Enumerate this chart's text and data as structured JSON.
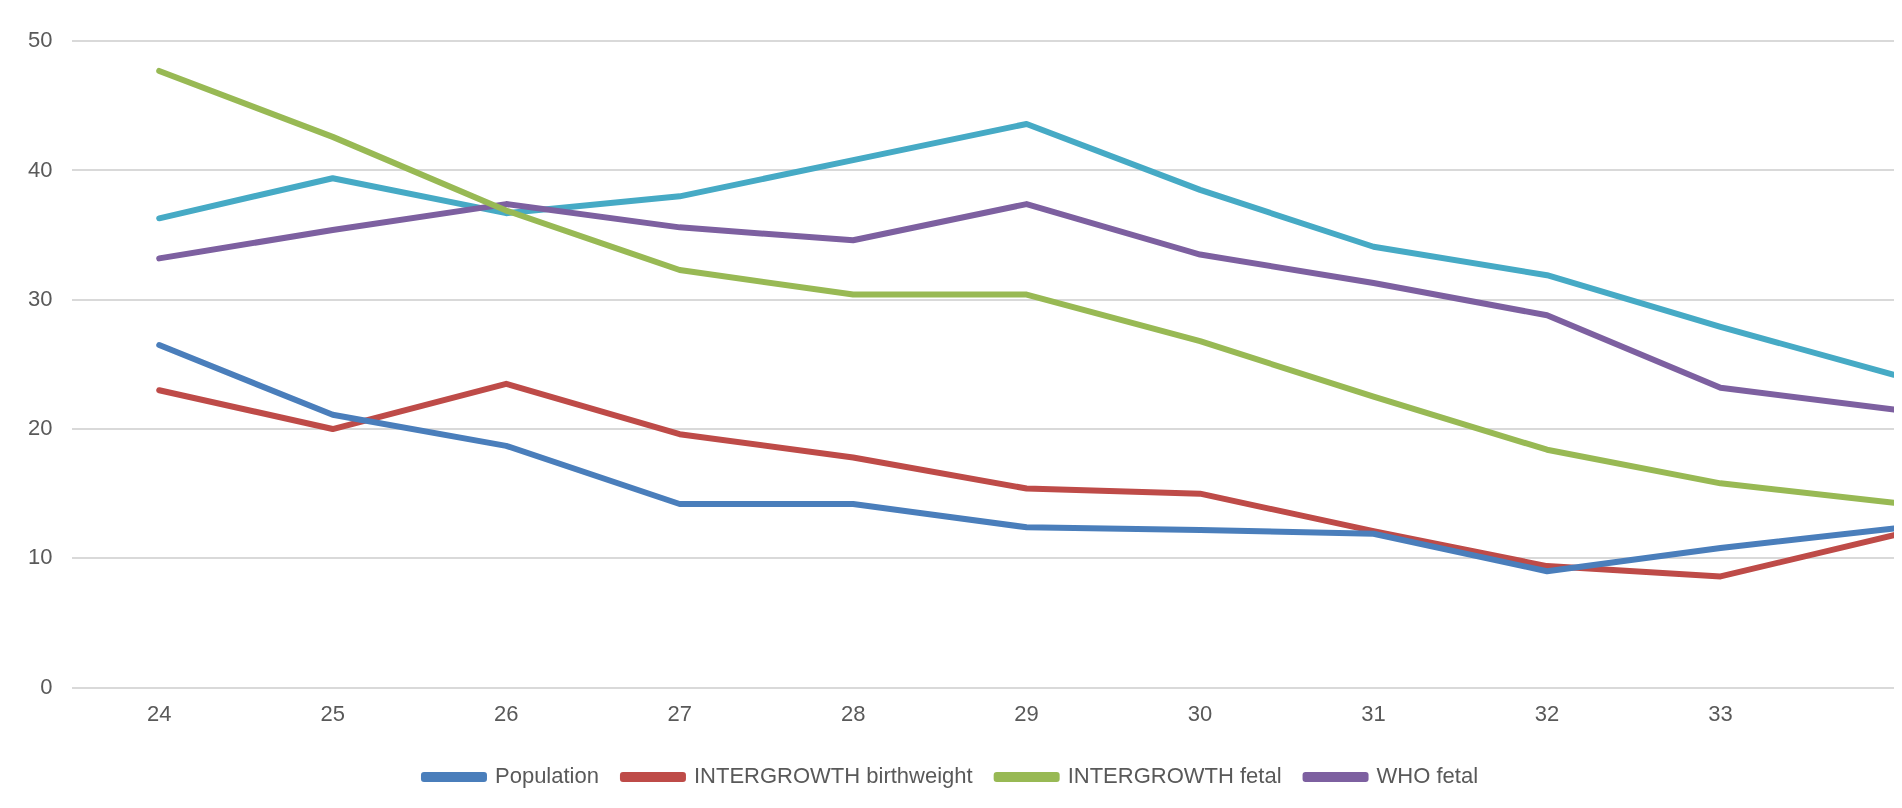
{
  "chart_data": {
    "type": "line",
    "x": [
      24,
      25,
      26,
      27,
      28,
      29,
      30,
      31,
      32,
      33,
      34
    ],
    "xlim": [
      23.5,
      34
    ],
    "xticks": [
      24,
      25,
      26,
      27,
      28,
      29,
      30,
      31,
      32,
      33
    ],
    "ylim": [
      0,
      50
    ],
    "yticks": [
      0,
      10,
      20,
      30,
      40,
      50
    ],
    "grid": "y",
    "legend": "bottom",
    "marker": "none",
    "line_style": "solid",
    "series": [
      {
        "name": "Population",
        "color": "#4a7ebb",
        "values": [
          26.5,
          21.1,
          18.7,
          14.2,
          14.2,
          12.4,
          12.2,
          11.9,
          9.0,
          10.8,
          12.3
        ]
      },
      {
        "name": "INTERGROWTH birthweight",
        "color": "#be4b48",
        "values": [
          23.0,
          20.0,
          23.5,
          19.6,
          17.8,
          15.4,
          15.0,
          12.1,
          9.4,
          8.6,
          11.8
        ]
      },
      {
        "name": "INTERGROWTH fetal",
        "color": "#98b954",
        "values": [
          47.7,
          42.6,
          36.9,
          32.3,
          30.4,
          30.4,
          26.8,
          22.5,
          18.4,
          15.8,
          14.3
        ]
      },
      {
        "name": "WHO fetal",
        "color": "#7d60a0",
        "values": [
          33.2,
          35.4,
          37.4,
          35.6,
          34.6,
          37.4,
          33.5,
          31.3,
          28.8,
          23.2,
          21.5
        ]
      },
      {
        "color": "#46aac5",
        "values": [
          36.3,
          39.4,
          36.7,
          38.0,
          40.8,
          43.6,
          38.5,
          34.1,
          31.9,
          27.9,
          24.2
        ]
      }
    ]
  }
}
